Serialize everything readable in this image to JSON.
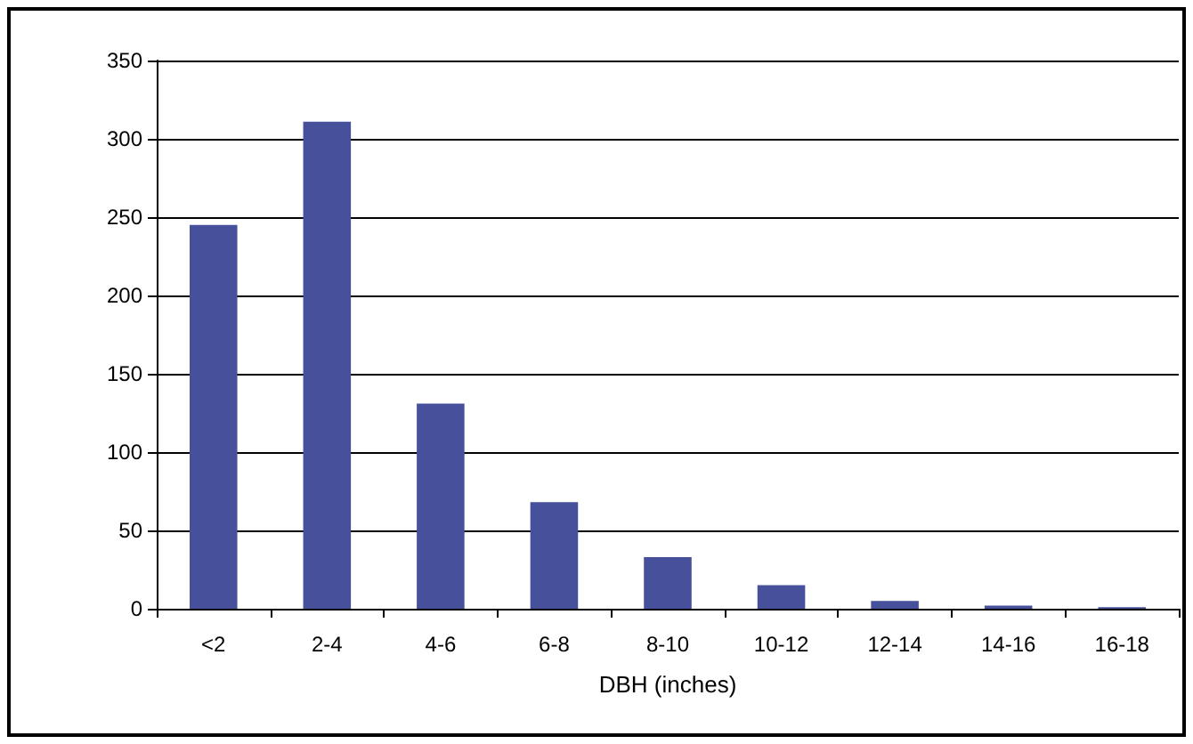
{
  "chart_data": {
    "type": "bar",
    "xlabel": "DBH (inches)",
    "categories": [
      "<2",
      "2-4",
      "4-6",
      "6-8",
      "8-10",
      "10-12",
      "12-14",
      "14-16",
      "16-18"
    ],
    "values": [
      245,
      311,
      131,
      68,
      33,
      15,
      5,
      2,
      1
    ],
    "color": "#47519b",
    "ylim": [
      0,
      350
    ],
    "yticks": [
      0,
      50,
      100,
      150,
      200,
      250,
      300,
      350
    ],
    "grid": "y"
  }
}
